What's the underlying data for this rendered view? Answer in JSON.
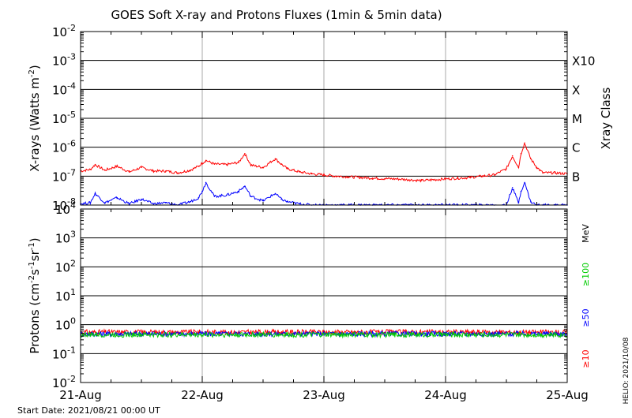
{
  "colors": {
    "xray_long": "#ff0000",
    "xray_short": "#0000ff",
    "p10": "#ff0000",
    "p50": "#0000ff",
    "p100": "#00cc00",
    "grid": "#000000",
    "vgrid": "#aaaaaa"
  },
  "chart_data": {
    "type": "line",
    "title": "GOES Soft X-ray and Protons Fluxes   (1min & 5min data)",
    "start_date": "Start Date: 2021/08/21 00:00 UT",
    "credit": "HELIO: 2021/10/08",
    "x_tick_labels": [
      "21-Aug",
      "22-Aug",
      "23-Aug",
      "24-Aug",
      "25-Aug"
    ],
    "x_range_days": [
      0,
      4
    ],
    "panels": [
      {
        "name": "xray",
        "ylabel": "X-rays (Watts m",
        "ylabel_sup": "-2",
        "ylabel_end": ")",
        "yscale": "log",
        "ylim_exp": [
          -8,
          -2
        ],
        "ytick_exps": [
          -8,
          -7,
          -6,
          -5,
          -4,
          -3,
          -2
        ],
        "right_label": "Xray Class",
        "class_labels": [
          {
            "label": "X10",
            "exp": -3
          },
          {
            "label": "X",
            "exp": -4
          },
          {
            "label": "M",
            "exp": -5
          },
          {
            "label": "C",
            "exp": -6
          },
          {
            "label": "B",
            "exp": -7
          }
        ],
        "series": [
          {
            "name": "long",
            "x_days": [
              0,
              0.08,
              0.12,
              0.2,
              0.3,
              0.4,
              0.5,
              0.6,
              0.7,
              0.8,
              0.9,
              0.97,
              1.0,
              1.03,
              1.1,
              1.2,
              1.3,
              1.35,
              1.4,
              1.5,
              1.6,
              1.65,
              1.7,
              1.8,
              1.9,
              2.0,
              2.1,
              2.2,
              2.3,
              2.4,
              2.5,
              2.6,
              2.7,
              2.8,
              2.9,
              3.0,
              3.1,
              3.2,
              3.3,
              3.4,
              3.5,
              3.55,
              3.6,
              3.62,
              3.65,
              3.7,
              3.75,
              3.8,
              3.9,
              4.0
            ],
            "y": [
              1.5e-07,
              1.7e-07,
              2.5e-07,
              1.6e-07,
              2.2e-07,
              1.4e-07,
              2e-07,
              1.5e-07,
              1.5e-07,
              1.3e-07,
              1.6e-07,
              2.2e-07,
              2.8e-07,
              3.5e-07,
              2.6e-07,
              2.5e-07,
              3e-07,
              6e-07,
              2.4e-07,
              2e-07,
              4e-07,
              2.6e-07,
              1.8e-07,
              1.4e-07,
              1.2e-07,
              1.1e-07,
              1e-07,
              9.5e-08,
              9e-08,
              8.5e-08,
              8.2e-08,
              8e-08,
              7.5e-08,
              7e-08,
              7.5e-08,
              8e-08,
              8.5e-08,
              9e-08,
              1e-07,
              1.1e-07,
              1.8e-07,
              5e-07,
              2e-07,
              6e-07,
              1.4e-06,
              4e-07,
              2e-07,
              1.3e-07,
              1.3e-07,
              1.2e-07
            ]
          },
          {
            "name": "short",
            "x_days": [
              0,
              0.08,
              0.12,
              0.2,
              0.3,
              0.4,
              0.5,
              0.6,
              0.7,
              0.8,
              0.9,
              0.97,
              1.0,
              1.03,
              1.1,
              1.2,
              1.3,
              1.35,
              1.4,
              1.5,
              1.6,
              1.65,
              1.7,
              1.8,
              1.9,
              2.0,
              2.1,
              2.2,
              2.3,
              2.4,
              2.5,
              2.6,
              2.7,
              2.8,
              2.9,
              3.0,
              3.1,
              3.2,
              3.3,
              3.4,
              3.5,
              3.55,
              3.6,
              3.62,
              3.65,
              3.7,
              3.75,
              3.8,
              3.9,
              4.0
            ],
            "y": [
              1.1e-08,
              1.2e-08,
              2.5e-08,
              1.2e-08,
              1.8e-08,
              1.1e-08,
              1.6e-08,
              1.1e-08,
              1.2e-08,
              1e-08,
              1.3e-08,
              1.8e-08,
              3e-08,
              6e-08,
              2e-08,
              2.2e-08,
              3e-08,
              4.5e-08,
              2e-08,
              1.4e-08,
              2.5e-08,
              1.6e-08,
              1.3e-08,
              1.1e-08,
              1e-08,
              1e-08,
              1e-08,
              1e-08,
              1e-08,
              1e-08,
              1e-08,
              1e-08,
              1e-08,
              1e-08,
              1e-08,
              1e-08,
              1e-08,
              1e-08,
              1e-08,
              1e-08,
              1e-08,
              4e-08,
              1.2e-08,
              3e-08,
              6e-08,
              1.3e-08,
              1e-08,
              1e-08,
              1e-08,
              1e-08
            ]
          }
        ]
      },
      {
        "name": "protons",
        "ylabel": "Protons (cm",
        "ylabel_sup": "-2",
        "ylabel_mid": "s",
        "ylabel_sup2": "-1",
        "ylabel_mid2": "sr",
        "ylabel_sup3": "-1",
        "ylabel_end": ")",
        "yscale": "log",
        "ylim_exp": [
          -2,
          4
        ],
        "ytick_exps": [
          -2,
          -1,
          0,
          1,
          2,
          3,
          4
        ],
        "threshold": 10,
        "right_unit": "MeV",
        "legend": [
          {
            "label": "≥100",
            "color": "#00cc00"
          },
          {
            "label": "≥50",
            "color": "#0000ff"
          },
          {
            "label": "≥10",
            "color": "#ff0000"
          }
        ],
        "series": [
          {
            "name": "≥10",
            "level": 0.55
          },
          {
            "name": "≥50",
            "level": 0.48
          },
          {
            "name": "≥100",
            "level": 0.45
          }
        ]
      }
    ]
  }
}
